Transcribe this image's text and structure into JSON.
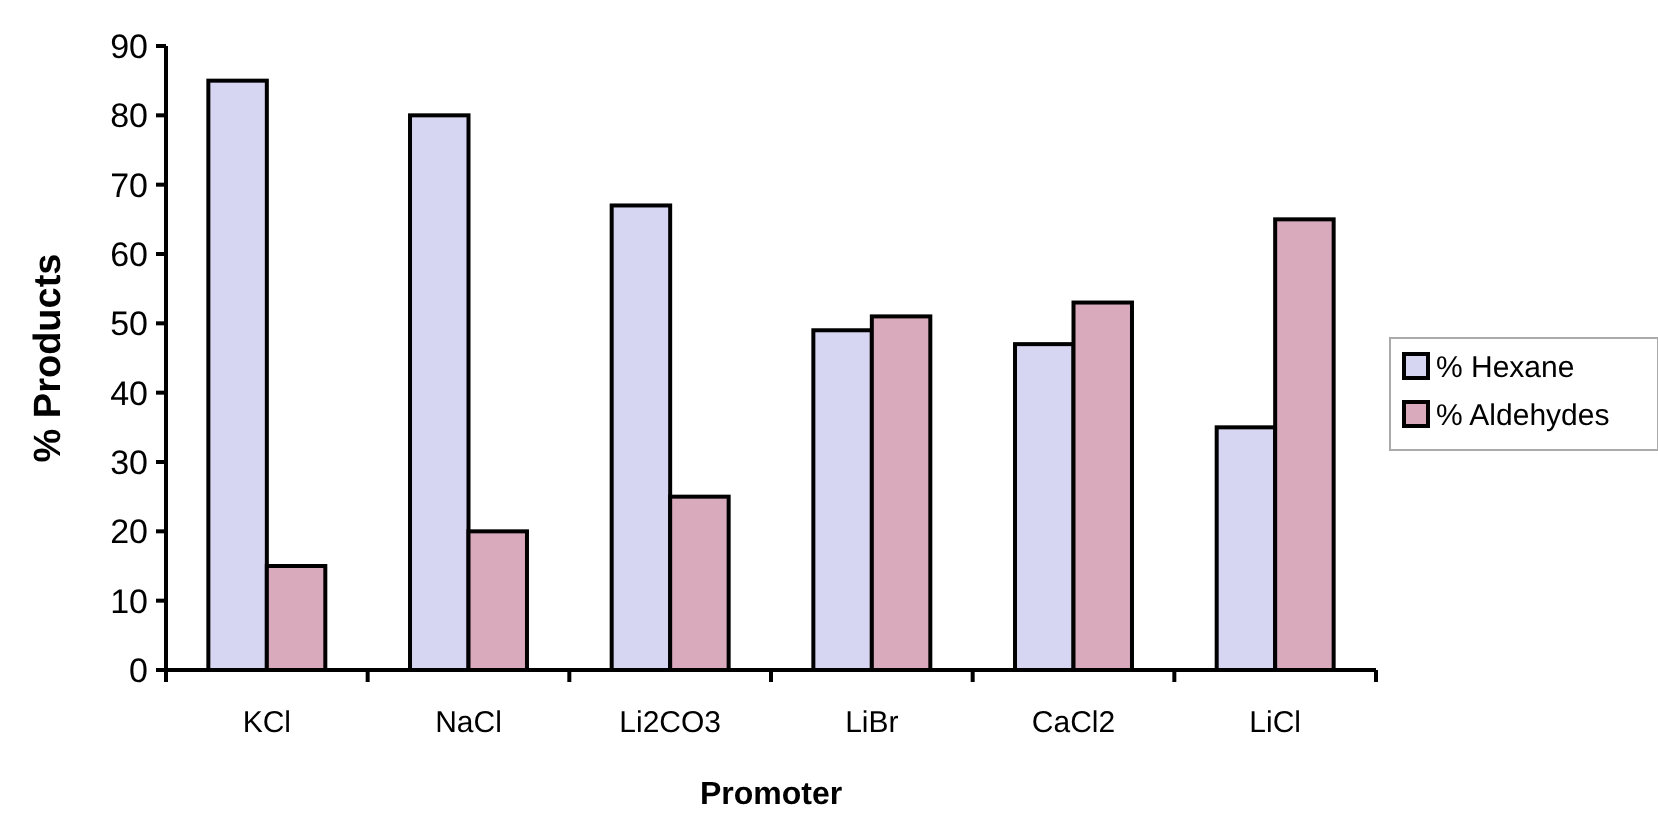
{
  "chart_data": {
    "type": "bar",
    "xlabel": "Promoter",
    "ylabel": "% Products",
    "categories": [
      "KCl",
      "NaCl",
      "Li2CO3",
      "LiBr",
      "CaCl2",
      "LiCl"
    ],
    "series": [
      {
        "name": "% Hexane",
        "color": "#d6d6f2",
        "values": [
          85,
          80,
          67,
          49,
          47,
          35
        ]
      },
      {
        "name": "% Aldehydes",
        "color": "#d9a9bc",
        "values": [
          15,
          20,
          25,
          51,
          53,
          65
        ]
      }
    ],
    "ylim": [
      0,
      90
    ],
    "yticks": [
      0,
      10,
      20,
      30,
      40,
      50,
      60,
      70,
      80,
      90
    ],
    "grid": false,
    "legend": "right"
  }
}
